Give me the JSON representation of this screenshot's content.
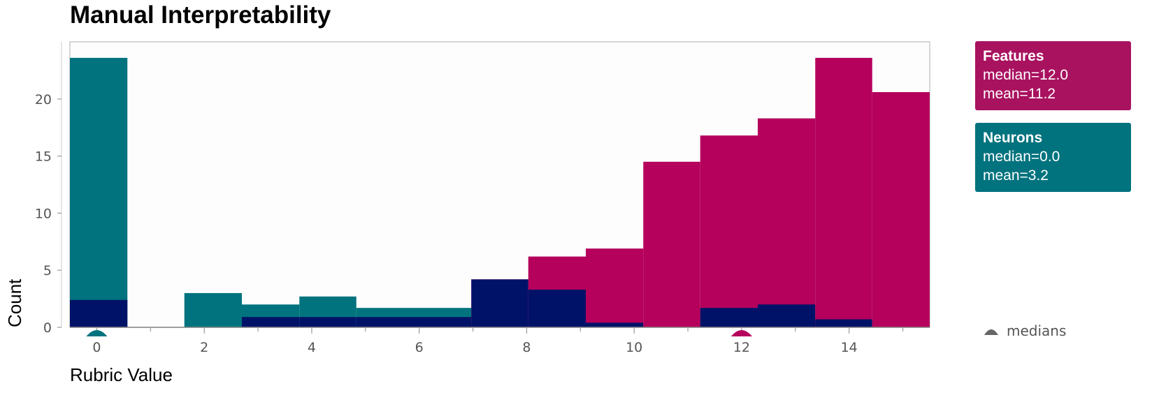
{
  "title": "Manual Interpretability",
  "chart_data": {
    "type": "histogram",
    "title": "Manual Interpretability",
    "xlabel": "Rubric Value",
    "ylabel": "Count",
    "xlim": [
      -0.5,
      15.5
    ],
    "ylim": [
      0,
      25
    ],
    "x_ticks": [
      0,
      2,
      4,
      6,
      8,
      10,
      12,
      14
    ],
    "y_ticks": [
      0,
      5,
      10,
      15,
      20
    ],
    "bins": [
      {
        "start": -0.5,
        "end": 0.57
      },
      {
        "start": 0.57,
        "end": 1.63
      },
      {
        "start": 1.63,
        "end": 2.7
      },
      {
        "start": 2.7,
        "end": 3.77
      },
      {
        "start": 3.77,
        "end": 4.83
      },
      {
        "start": 4.83,
        "end": 5.9
      },
      {
        "start": 5.9,
        "end": 6.97
      },
      {
        "start": 6.97,
        "end": 8.03
      },
      {
        "start": 8.03,
        "end": 9.1
      },
      {
        "start": 9.1,
        "end": 10.17
      },
      {
        "start": 10.17,
        "end": 11.23
      },
      {
        "start": 11.23,
        "end": 12.3
      },
      {
        "start": 12.3,
        "end": 13.37
      },
      {
        "start": 13.37,
        "end": 14.43
      },
      {
        "start": 14.43,
        "end": 15.5
      }
    ],
    "series": [
      {
        "name": "Features",
        "color": "#b5005c",
        "values": [
          2.4,
          0,
          0,
          0.9,
          0.9,
          0.9,
          0.9,
          4.2,
          6.2,
          6.9,
          14.5,
          16.8,
          18.3,
          23.6,
          20.6
        ]
      },
      {
        "name": "Neurons",
        "color": "#00737e",
        "values": [
          23.6,
          0,
          3.0,
          2.0,
          2.7,
          1.7,
          1.7,
          4.2,
          3.3,
          0.4,
          0,
          1.7,
          2.0,
          0.7,
          0
        ]
      }
    ],
    "overlap_color": "#001268",
    "medians": [
      {
        "series": "Neurons",
        "value": 0.0,
        "color": "#00737e"
      },
      {
        "series": "Features",
        "value": 12.0,
        "color": "#b5005c"
      }
    ]
  },
  "legend": [
    {
      "name": "Features",
      "median": "median=12.0",
      "mean": "mean=11.2",
      "color": "#a8125f"
    },
    {
      "name": "Neurons",
      "median": "median=0.0",
      "mean": "mean=3.2",
      "color": "#00737e"
    }
  ],
  "medians_label": "medians"
}
